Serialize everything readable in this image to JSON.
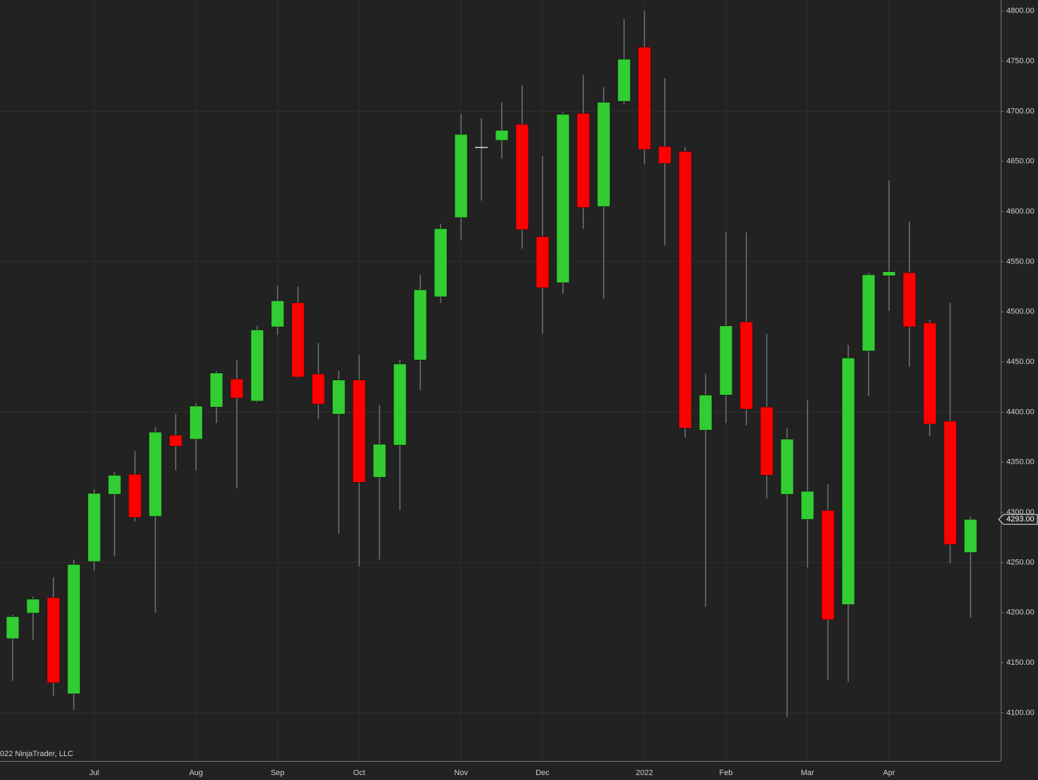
{
  "chart_data": {
    "type": "candlestick",
    "categories": [
      null,
      null,
      null,
      null,
      "Jul",
      null,
      null,
      null,
      null,
      "Aug",
      null,
      null,
      null,
      "Sep",
      null,
      null,
      null,
      "Oct",
      null,
      null,
      null,
      null,
      "Nov",
      null,
      null,
      null,
      "Dec",
      null,
      null,
      null,
      null,
      "2022",
      null,
      null,
      null,
      "Feb",
      null,
      null,
      null,
      "Mar",
      null,
      null,
      null,
      "Apr",
      null,
      null,
      null,
      null
    ],
    "open": [
      4174,
      4199.5,
      4215,
      4119,
      4251,
      4318,
      4338,
      4296,
      4377,
      4373,
      4405,
      4433,
      4411,
      4485,
      4509,
      4438,
      4398,
      4432,
      4335,
      4367,
      4452,
      4515,
      4594,
      4664,
      4671,
      4687,
      4575,
      4529,
      4698,
      4605,
      4710,
      4764,
      4665,
      4660,
      4382,
      4417,
      4490,
      4405,
      4318,
      4293,
      4302,
      4208,
      4461,
      4536,
      4539,
      4489,
      4391,
      4260
    ],
    "high": [
      4198,
      4216,
      4235,
      4253,
      4323,
      4340,
      4361,
      4385,
      4398,
      4409,
      4441,
      4452,
      4486,
      4526,
      4525,
      4469,
      4441,
      4457,
      4407,
      4452,
      4537,
      4588,
      4697,
      4693,
      4709,
      4726,
      4655,
      4699,
      4736,
      4724,
      4792,
      4800,
      4733,
      4664,
      4438,
      4579,
      4579,
      4478,
      4384,
      4412,
      4328,
      4467,
      4539,
      4631,
      4590,
      4492,
      4509,
      4296
    ],
    "low": [
      4132,
      4173,
      4117,
      4103,
      4242,
      4256,
      4291,
      4200,
      4342,
      4342,
      4389,
      4324,
      4410,
      4477,
      4434,
      4393,
      4279,
      4246,
      4253,
      4302,
      4422,
      4509,
      4572,
      4611,
      4653,
      4563,
      4478,
      4518,
      4583,
      4513,
      4707,
      4647,
      4566,
      4375,
      4206,
      4389,
      4387,
      4314,
      4096,
      4245,
      4133,
      4131,
      4416,
      4501,
      4445,
      4376,
      4249,
      4195
    ],
    "close": [
      4196,
      4213.5,
      4130,
      4248,
      4319,
      4337,
      4295,
      4380,
      4366,
      4406,
      4439,
      4414,
      4482,
      4511,
      4435,
      4408,
      4432,
      4330,
      4368,
      4448,
      4522,
      4583,
      4677,
      4664,
      4681,
      4582,
      4524,
      4697,
      4604,
      4709,
      4752,
      4662,
      4648,
      4384,
      4417,
      4486,
      4403,
      4337,
      4373,
      4321,
      4193,
      4454,
      4537,
      4540,
      4485,
      4388,
      4268,
      4293
    ],
    "up_color": "#32cd32",
    "down_color": "#ff0000",
    "ylim": [
      4052,
      4811
    ],
    "yticks": [
      {
        "value": 4100,
        "label": "4100.00"
      },
      {
        "value": 4150,
        "label": "4150.00"
      },
      {
        "value": 4200,
        "label": "4200.00"
      },
      {
        "value": 4250,
        "label": "4250.00"
      },
      {
        "value": 4300,
        "label": "4300.00"
      },
      {
        "value": 4350,
        "label": "4350.00"
      },
      {
        "value": 4400,
        "label": "4400.00"
      },
      {
        "value": 4450,
        "label": "4450.00"
      },
      {
        "value": 4500,
        "label": "4500.00"
      },
      {
        "value": 4550,
        "label": "4550.00"
      },
      {
        "value": 4600,
        "label": "4600.00"
      },
      {
        "value": 4650,
        "label": "4650.00"
      },
      {
        "value": 4700,
        "label": "4700.00"
      },
      {
        "value": 4750,
        "label": "4750.00"
      },
      {
        "value": 4800,
        "label": "4800.00"
      }
    ],
    "last_price": {
      "value": 4293,
      "label": "4293.00"
    },
    "copyright": "022 NinjaTrader, LLC"
  }
}
